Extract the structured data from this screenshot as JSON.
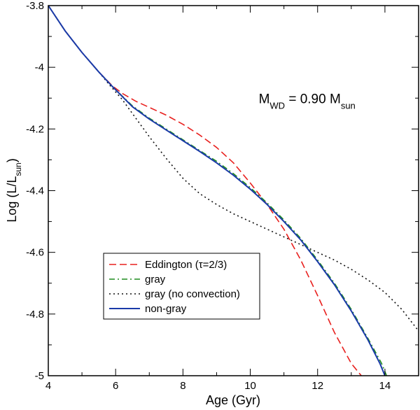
{
  "chart_data": {
    "type": "line",
    "xlabel": "Age (Gyr)",
    "ylabel_main": "Log (L/L",
    "ylabel_sub": "sun",
    "ylabel_close": ")",
    "xlim": [
      4,
      15
    ],
    "ylim": [
      -5,
      -3.8
    ],
    "xticks": [
      4,
      6,
      8,
      10,
      12,
      14
    ],
    "xtick_labels": [
      "4",
      "6",
      "8",
      "10",
      "12",
      "14"
    ],
    "yticks": [
      -3.8,
      -4.0,
      -4.2,
      -4.4,
      -4.6,
      -4.8,
      -5.0
    ],
    "ytick_labels": [
      "-3.8",
      "-4",
      "-4.2",
      "-4.4",
      "-4.6",
      "-4.8",
      "-5"
    ],
    "annotation": {
      "main": "M",
      "sub1": "WD",
      "mid": " = 0.90 M",
      "sub2": "sun",
      "x": 10.25,
      "y": -4.1
    },
    "legend_position": "bottom-left",
    "series": [
      {
        "name": "Eddington (τ=2/3)",
        "color": "#e8201e",
        "style": "dashed",
        "x": [
          4.0,
          4.5,
          5.0,
          5.5,
          5.9,
          6.2,
          6.6,
          7.0,
          7.5,
          8.0,
          8.5,
          9.0,
          9.5,
          10.0,
          10.5,
          11.0,
          11.5,
          12.0,
          12.5,
          13.0,
          13.3
        ],
        "y": [
          -3.8,
          -3.882,
          -3.952,
          -4.015,
          -4.06,
          -4.085,
          -4.11,
          -4.13,
          -4.155,
          -4.185,
          -4.22,
          -4.26,
          -4.31,
          -4.375,
          -4.445,
          -4.525,
          -4.625,
          -4.74,
          -4.86,
          -4.96,
          -5.0
        ]
      },
      {
        "name": "gray",
        "color": "#1f8c1f",
        "style": "dashdot",
        "x": [
          4.0,
          4.5,
          5.0,
          5.5,
          5.9,
          6.5,
          7.0,
          7.5,
          8.0,
          8.5,
          9.0,
          9.5,
          10.0,
          10.5,
          11.0,
          11.5,
          12.0,
          12.5,
          13.0,
          13.5,
          13.9,
          14.05
        ],
        "y": [
          -3.8,
          -3.882,
          -3.952,
          -4.015,
          -4.062,
          -4.125,
          -4.165,
          -4.2,
          -4.235,
          -4.27,
          -4.305,
          -4.345,
          -4.39,
          -4.44,
          -4.495,
          -4.555,
          -4.625,
          -4.7,
          -4.785,
          -4.88,
          -4.96,
          -5.0
        ]
      },
      {
        "name": "gray (no convection)",
        "color": "#111111",
        "style": "dotted",
        "x": [
          4.0,
          4.5,
          5.0,
          5.5,
          5.8,
          6.2,
          6.6,
          7.0,
          7.5,
          8.0,
          8.5,
          9.0,
          9.5,
          10.0,
          10.5,
          11.0,
          11.5,
          12.0,
          12.5,
          13.0,
          13.5,
          14.0,
          14.5,
          15.0
        ],
        "y": [
          -3.8,
          -3.882,
          -3.952,
          -4.015,
          -4.055,
          -4.105,
          -4.165,
          -4.225,
          -4.295,
          -4.36,
          -4.41,
          -4.445,
          -4.475,
          -4.5,
          -4.525,
          -4.55,
          -4.575,
          -4.6,
          -4.625,
          -4.655,
          -4.69,
          -4.73,
          -4.785,
          -4.855
        ]
      },
      {
        "name": "non-gray",
        "color": "#1a3aa8",
        "style": "solid",
        "x": [
          4.0,
          4.5,
          5.0,
          5.5,
          5.9,
          6.5,
          7.0,
          7.5,
          8.0,
          8.5,
          9.0,
          9.5,
          10.0,
          10.5,
          11.0,
          11.5,
          12.0,
          12.5,
          13.0,
          13.5,
          13.85,
          14.0
        ],
        "y": [
          -3.8,
          -3.882,
          -3.952,
          -4.015,
          -4.062,
          -4.128,
          -4.168,
          -4.203,
          -4.238,
          -4.273,
          -4.31,
          -4.35,
          -4.395,
          -4.445,
          -4.5,
          -4.56,
          -4.63,
          -4.705,
          -4.79,
          -4.885,
          -4.96,
          -5.0
        ]
      }
    ]
  }
}
